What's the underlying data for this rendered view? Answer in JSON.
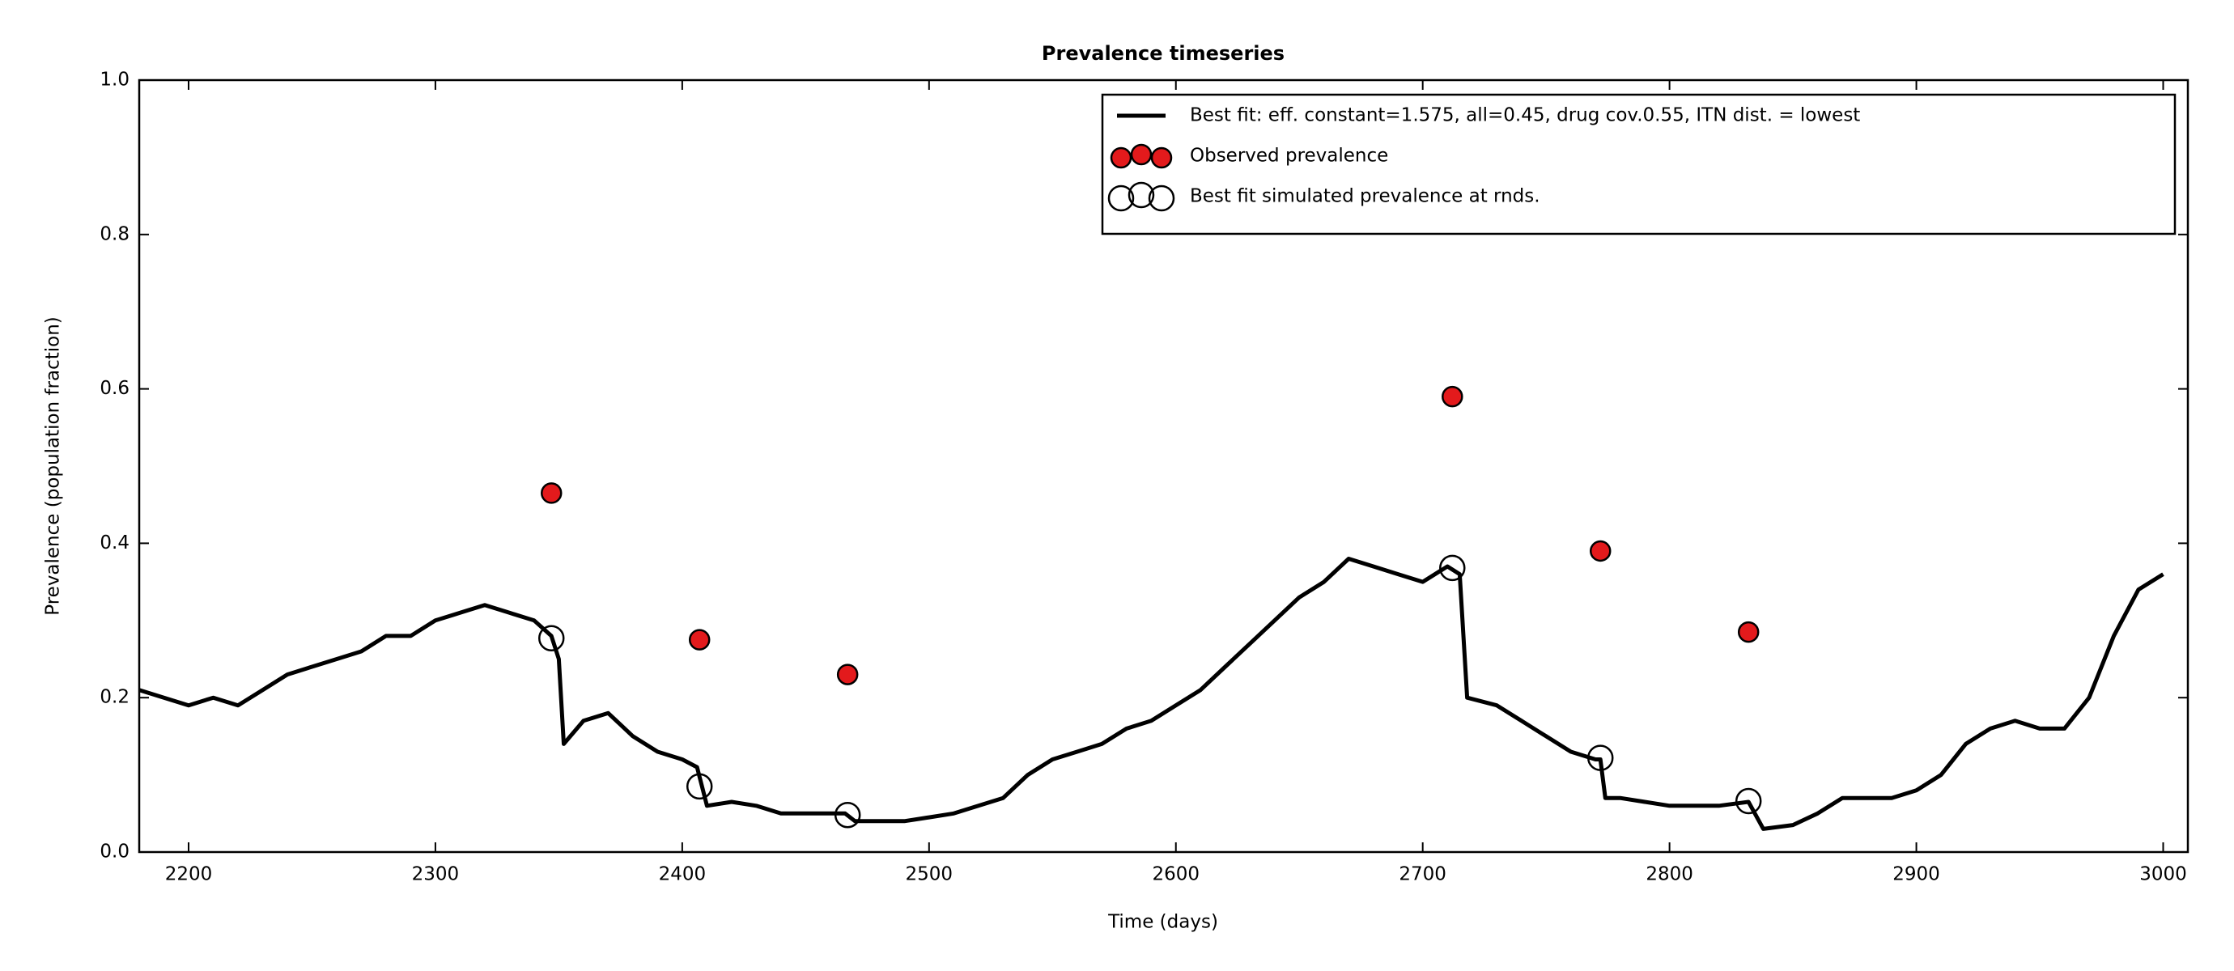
{
  "chart_data": {
    "type": "line",
    "title": "Prevalence timeseries",
    "xlabel": "Time (days)",
    "ylabel": "Prevalence (population fraction)",
    "xlim": [
      2180,
      3010
    ],
    "ylim": [
      0,
      1
    ],
    "xticks": [
      2200,
      2300,
      2400,
      2500,
      2600,
      2700,
      2800,
      2900,
      3000
    ],
    "yticks": [
      {
        "value": 0,
        "label": "0.0"
      },
      0.2,
      0.4,
      0.6,
      0.8,
      {
        "value": 1,
        "label": "1.0"
      }
    ],
    "legend": "upper right",
    "series": [
      {
        "name": "Best fit: eff. constant=1.575, all=0.45, drug cov.0.55, ITN dist. = lowest",
        "type": "line",
        "color": "#000000",
        "x": [
          2180,
          2190,
          2200,
          2210,
          2220,
          2230,
          2240,
          2250,
          2260,
          2270,
          2280,
          2290,
          2300,
          2310,
          2320,
          2330,
          2340,
          2347,
          2350,
          2352,
          2360,
          2370,
          2380,
          2390,
          2400,
          2406,
          2408,
          2410,
          2420,
          2430,
          2440,
          2450,
          2460,
          2466,
          2470,
          2480,
          2490,
          2500,
          2510,
          2520,
          2530,
          2540,
          2550,
          2560,
          2570,
          2580,
          2590,
          2600,
          2610,
          2620,
          2630,
          2640,
          2650,
          2660,
          2670,
          2680,
          2690,
          2700,
          2710,
          2715,
          2718,
          2730,
          2740,
          2750,
          2760,
          2770,
          2772,
          2774,
          2780,
          2790,
          2800,
          2810,
          2820,
          2832,
          2838,
          2850,
          2860,
          2870,
          2880,
          2890,
          2900,
          2910,
          2920,
          2930,
          2940,
          2950,
          2960,
          2970,
          2980,
          2990,
          3000
        ],
        "values": [
          0.21,
          0.2,
          0.19,
          0.2,
          0.19,
          0.21,
          0.23,
          0.24,
          0.25,
          0.26,
          0.28,
          0.28,
          0.3,
          0.31,
          0.32,
          0.31,
          0.3,
          0.28,
          0.25,
          0.14,
          0.17,
          0.18,
          0.15,
          0.13,
          0.12,
          0.11,
          0.085,
          0.06,
          0.065,
          0.06,
          0.05,
          0.05,
          0.05,
          0.05,
          0.04,
          0.04,
          0.04,
          0.045,
          0.05,
          0.06,
          0.07,
          0.1,
          0.12,
          0.13,
          0.14,
          0.16,
          0.17,
          0.19,
          0.21,
          0.24,
          0.27,
          0.3,
          0.33,
          0.35,
          0.38,
          0.37,
          0.36,
          0.35,
          0.37,
          0.36,
          0.2,
          0.19,
          0.17,
          0.15,
          0.13,
          0.12,
          0.12,
          0.07,
          0.07,
          0.065,
          0.06,
          0.06,
          0.06,
          0.065,
          0.03,
          0.035,
          0.05,
          0.07,
          0.07,
          0.07,
          0.08,
          0.1,
          0.14,
          0.16,
          0.17,
          0.16,
          0.16,
          0.2,
          0.28,
          0.34,
          0.36
        ]
      },
      {
        "name": "Observed prevalence",
        "type": "scatter",
        "color": "#e31a1c",
        "edgecolor": "#000000",
        "x": [
          2347,
          2407,
          2467,
          2712,
          2772,
          2832
        ],
        "values": [
          0.465,
          0.275,
          0.23,
          0.59,
          0.39,
          0.285
        ]
      },
      {
        "name": "Best fit simulated prevalence at rnds.",
        "type": "scatter",
        "color": "none",
        "edgecolor": "#000000",
        "x": [
          2347,
          2407,
          2467,
          2712,
          2772,
          2832
        ],
        "values": [
          0.277,
          0.085,
          0.048,
          0.368,
          0.122,
          0.066
        ]
      }
    ]
  }
}
